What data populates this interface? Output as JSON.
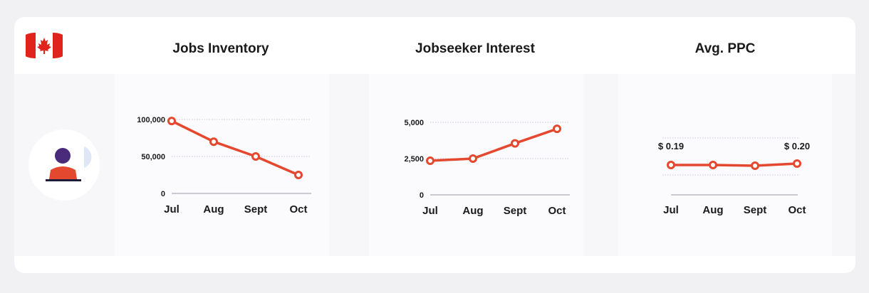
{
  "colors": {
    "line": "#e4492f",
    "flag_red": "#e0241b",
    "avatar_head": "#4a2a7a",
    "avatar_body": "#e4492f"
  },
  "icons": {
    "flag": "canada-flag-icon",
    "avatar": "user-at-desk-icon"
  },
  "chart_data": [
    {
      "type": "line",
      "title": "Jobs Inventory",
      "categories": [
        "Jul",
        "Aug",
        "Sept",
        "Oct"
      ],
      "values": [
        98000,
        70000,
        50000,
        25000
      ],
      "ytick_labels": [
        "100,000",
        "50,000",
        "0"
      ],
      "ytick_values": [
        100000,
        50000,
        0
      ],
      "ylim": [
        0,
        100000
      ],
      "grid": true
    },
    {
      "type": "line",
      "title": "Jobseeker Interest",
      "categories": [
        "Jul",
        "Aug",
        "Sept",
        "Oct"
      ],
      "values": [
        2350,
        2500,
        3550,
        4550
      ],
      "ytick_labels": [
        "5,000",
        "2,500",
        "0"
      ],
      "ytick_values": [
        5000,
        2500,
        0
      ],
      "ylim": [
        0,
        5000
      ],
      "grid": true
    },
    {
      "type": "line",
      "title": "Avg. PPC",
      "categories": [
        "Jul",
        "Aug",
        "Sept",
        "Oct"
      ],
      "values": [
        0.19,
        0.19,
        0.188,
        0.2
      ],
      "annotations": [
        {
          "index": 0,
          "text": "$ 0.19"
        },
        {
          "index": 3,
          "text": "$ 0.20"
        }
      ],
      "grid": true
    }
  ]
}
